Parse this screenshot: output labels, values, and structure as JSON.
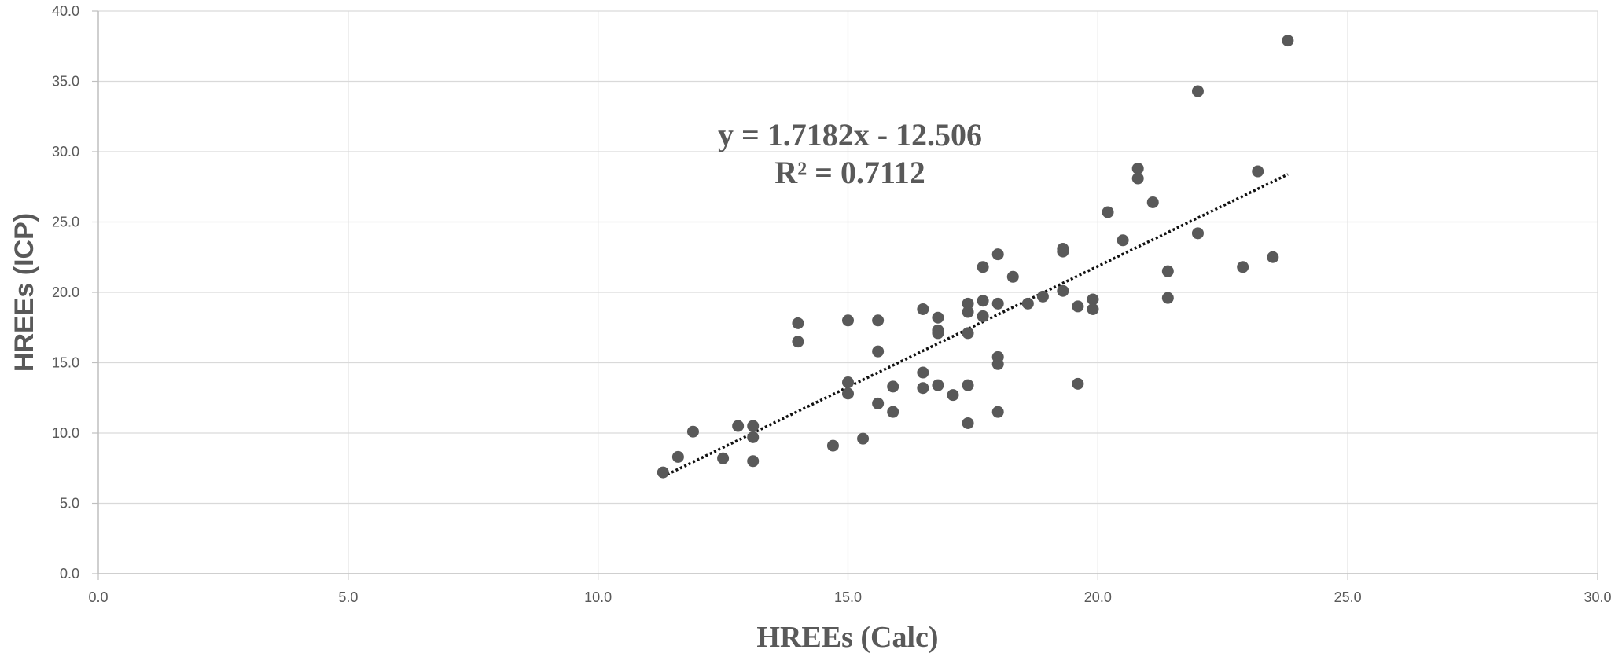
{
  "chart_data": {
    "type": "scatter",
    "title": "",
    "xlabel": "HREEs (Calc)",
    "ylabel": "HREEs (ICP)",
    "xlim": [
      0,
      30
    ],
    "ylim": [
      0,
      40
    ],
    "x_ticks": [
      "0.0",
      "5.0",
      "10.0",
      "15.0",
      "20.0",
      "25.0",
      "30.0"
    ],
    "y_ticks": [
      "0.0",
      "5.0",
      "10.0",
      "15.0",
      "20.0",
      "25.0",
      "30.0",
      "35.0",
      "40.0"
    ],
    "grid": true,
    "legend": "none",
    "colors": {
      "points": "#595959",
      "trendline": "#111111",
      "grid": "#d9d9d9",
      "axis": "#bfbfbf",
      "text": "#595959"
    },
    "series": [
      {
        "points": [
          [
            11.3,
            7.2
          ],
          [
            11.6,
            8.3
          ],
          [
            11.9,
            10.1
          ],
          [
            12.5,
            8.2
          ],
          [
            12.8,
            10.5
          ],
          [
            13.1,
            10.5
          ],
          [
            13.1,
            9.7
          ],
          [
            13.1,
            8.0
          ],
          [
            14.0,
            17.8
          ],
          [
            14.0,
            16.5
          ],
          [
            14.7,
            9.1
          ],
          [
            15.0,
            18.0
          ],
          [
            15.0,
            13.6
          ],
          [
            15.0,
            12.8
          ],
          [
            15.3,
            9.6
          ],
          [
            15.6,
            18.0
          ],
          [
            15.6,
            15.8
          ],
          [
            15.6,
            12.1
          ],
          [
            15.9,
            13.3
          ],
          [
            15.9,
            11.5
          ],
          [
            16.5,
            18.8
          ],
          [
            16.5,
            14.3
          ],
          [
            16.5,
            13.2
          ],
          [
            16.8,
            18.2
          ],
          [
            16.8,
            17.3
          ],
          [
            16.8,
            17.1
          ],
          [
            16.8,
            13.4
          ],
          [
            17.1,
            12.7
          ],
          [
            17.4,
            19.2
          ],
          [
            17.4,
            18.6
          ],
          [
            17.4,
            17.1
          ],
          [
            17.4,
            13.4
          ],
          [
            17.4,
            10.7
          ],
          [
            17.7,
            21.8
          ],
          [
            17.7,
            19.4
          ],
          [
            17.7,
            18.3
          ],
          [
            18.0,
            22.7
          ],
          [
            18.0,
            19.2
          ],
          [
            18.0,
            15.4
          ],
          [
            18.0,
            14.9
          ],
          [
            18.0,
            11.5
          ],
          [
            18.3,
            21.1
          ],
          [
            18.6,
            19.2
          ],
          [
            18.9,
            19.7
          ],
          [
            19.3,
            23.1
          ],
          [
            19.3,
            22.9
          ],
          [
            19.3,
            20.1
          ],
          [
            19.6,
            19.0
          ],
          [
            19.6,
            13.5
          ],
          [
            19.9,
            19.5
          ],
          [
            19.9,
            18.8
          ],
          [
            20.2,
            25.7
          ],
          [
            20.5,
            23.7
          ],
          [
            20.8,
            28.8
          ],
          [
            20.8,
            28.1
          ],
          [
            21.1,
            26.4
          ],
          [
            21.4,
            21.5
          ],
          [
            21.4,
            19.6
          ],
          [
            22.0,
            34.3
          ],
          [
            22.0,
            24.2
          ],
          [
            22.9,
            21.8
          ],
          [
            23.2,
            28.6
          ],
          [
            23.5,
            22.5
          ],
          [
            23.8,
            37.9
          ]
        ]
      }
    ],
    "trendline": {
      "type": "linear",
      "slope": 1.7182,
      "intercept": -12.506,
      "x_range": [
        11.3,
        23.8
      ],
      "style": "dotted",
      "equation_label": "y = 1.7182x - 12.506",
      "r2_label": "R² = 0.7112"
    }
  }
}
